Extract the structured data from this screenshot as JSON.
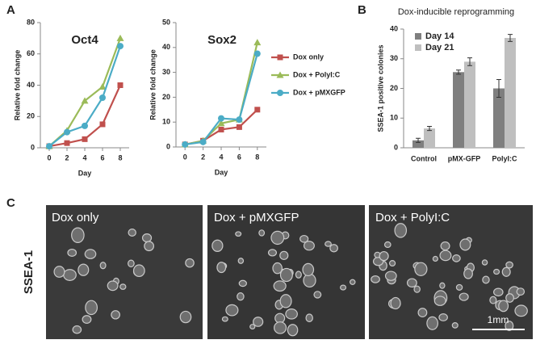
{
  "panels": [
    "A",
    "B",
    "C"
  ],
  "images": {
    "row_label": "SSEA-1",
    "captions": [
      "Dox only",
      "Dox + pMXGFP",
      "Dox + PolyI:C"
    ],
    "scale_bar": "1mm"
  },
  "chart_data": [
    {
      "type": "line",
      "title": "Oct4",
      "x_label": "Day",
      "y_label": "Relative fold change",
      "x": [
        0,
        2,
        4,
        6,
        8
      ],
      "xlim": [
        -1,
        9
      ],
      "xticks": [
        0,
        2,
        4,
        6,
        8
      ],
      "ylim": [
        0,
        80
      ],
      "yticks": [
        0,
        20,
        40,
        60,
        80
      ],
      "legend": "none",
      "series": [
        {
          "name": "Dox only",
          "color": "#c0504d",
          "marker": "square",
          "values": [
            1,
            3,
            5.5,
            15,
            40
          ]
        },
        {
          "name": "Dox + PolyI:C",
          "color": "#9bbb59",
          "marker": "triangle",
          "values": [
            1,
            11,
            30,
            39,
            70
          ]
        },
        {
          "name": "Dox + pMXGFP",
          "color": "#4bacc6",
          "marker": "circle",
          "values": [
            1,
            10,
            14,
            32,
            65
          ]
        }
      ]
    },
    {
      "type": "line",
      "title": "Sox2",
      "x_label": "Day",
      "y_label": "Relative fold change",
      "x": [
        0,
        2,
        4,
        6,
        8
      ],
      "xlim": [
        -1,
        9
      ],
      "xticks": [
        0,
        2,
        4,
        6,
        8
      ],
      "ylim": [
        0,
        50
      ],
      "yticks": [
        0,
        10,
        20,
        30,
        40,
        50
      ],
      "legend": "right",
      "series": [
        {
          "name": "Dox only",
          "color": "#c0504d",
          "marker": "square",
          "values": [
            1,
            2.5,
            7,
            8,
            15
          ]
        },
        {
          "name": "Dox + PolyI:C",
          "color": "#9bbb59",
          "marker": "triangle",
          "values": [
            1,
            2.5,
            9.5,
            11,
            42
          ]
        },
        {
          "name": "Dox + pMXGFP",
          "color": "#4bacc6",
          "marker": "circle",
          "values": [
            1,
            2,
            11.5,
            11,
            37.5
          ]
        }
      ]
    },
    {
      "type": "bar",
      "title": "Dox-inducible reprogramming",
      "y_label": "SSEA-1 positive colonies",
      "categories": [
        "Control",
        "pMX-GFP",
        "PolyI:C"
      ],
      "ylim": [
        0,
        40
      ],
      "yticks": [
        0,
        10,
        20,
        30,
        40
      ],
      "legend": "upper left",
      "series": [
        {
          "name": "Day 14",
          "color": "#7f7f7f",
          "values": [
            2.5,
            25.5,
            20
          ],
          "errors": [
            0.7,
            0.7,
            3
          ]
        },
        {
          "name": "Day 21",
          "color": "#bfbfbf",
          "values": [
            6.5,
            29,
            37
          ],
          "errors": [
            0.7,
            1.3,
            1.2
          ]
        }
      ]
    }
  ]
}
